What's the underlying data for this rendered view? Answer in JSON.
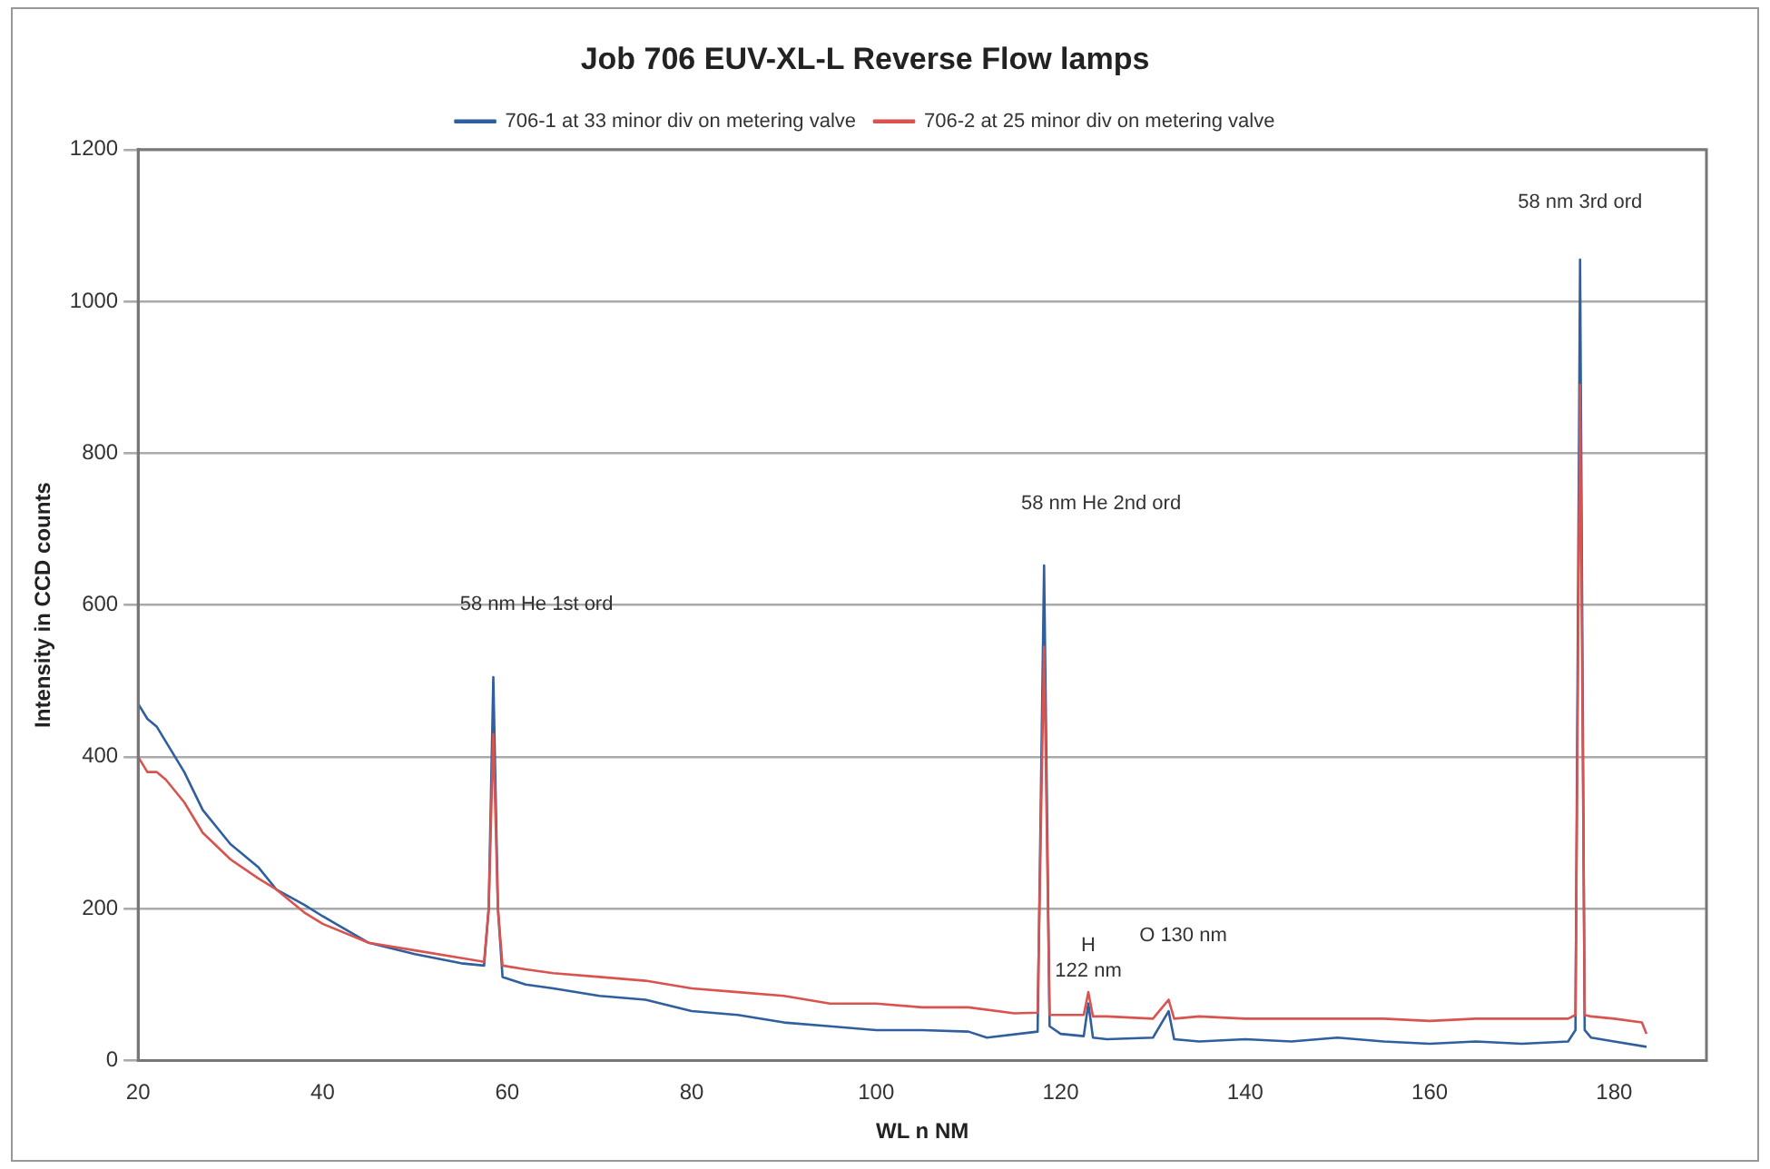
{
  "chart_data": {
    "type": "line",
    "title": "Job 706 EUV-XL-L Reverse Flow lamps",
    "xlabel": "WL n NM",
    "ylabel": "Intensity in CCD counts",
    "xlim": [
      20,
      190
    ],
    "xticks": [
      20,
      40,
      60,
      80,
      100,
      120,
      140,
      160,
      180
    ],
    "ylim": [
      0,
      1200
    ],
    "yticks": [
      0,
      200,
      400,
      600,
      800,
      1000,
      1200
    ],
    "grid": "y",
    "legend": "top",
    "marker": "none",
    "series": [
      {
        "name": "706-1 at 33 minor div on metering valve",
        "color": "#2f5f9e",
        "x": [
          20,
          21,
          22,
          24,
          25,
          27,
          30,
          33,
          35,
          38,
          40,
          45,
          50,
          55,
          57.5,
          58,
          58.5,
          59,
          59.5,
          62,
          65,
          70,
          75,
          80,
          85,
          90,
          95,
          100,
          105,
          110,
          112,
          117.5,
          118.2,
          118.8,
          120,
          122.5,
          123,
          123.5,
          125,
          130,
          131.7,
          132.3,
          135,
          140,
          145,
          150,
          155,
          160,
          165,
          170,
          175,
          175.8,
          176.3,
          176.8,
          177.5,
          180,
          183.5
        ],
        "values": [
          470,
          450,
          440,
          400,
          380,
          330,
          285,
          255,
          225,
          205,
          190,
          155,
          140,
          128,
          125,
          200,
          505,
          200,
          110,
          100,
          95,
          85,
          80,
          65,
          60,
          50,
          45,
          40,
          40,
          38,
          30,
          38,
          652,
          45,
          35,
          32,
          75,
          30,
          28,
          30,
          65,
          28,
          25,
          28,
          25,
          30,
          25,
          22,
          25,
          22,
          25,
          40,
          1055,
          40,
          30,
          25,
          18
        ]
      },
      {
        "name": "706-2 at 25 minor div on metering valve",
        "color": "#d9534f",
        "x": [
          20,
          21,
          22,
          23,
          25,
          27,
          30,
          33,
          35,
          38,
          40,
          45,
          50,
          55,
          57.5,
          58,
          58.5,
          59,
          59.5,
          62,
          65,
          70,
          75,
          80,
          85,
          90,
          95,
          100,
          105,
          110,
          115,
          117.5,
          118.2,
          118.8,
          120,
          122.5,
          123,
          123.5,
          125,
          130,
          131.7,
          132.3,
          135,
          140,
          145,
          150,
          155,
          160,
          165,
          170,
          175,
          175.8,
          176.3,
          176.8,
          177.5,
          180,
          183,
          183.5
        ],
        "values": [
          400,
          380,
          380,
          370,
          340,
          300,
          265,
          240,
          225,
          195,
          180,
          155,
          145,
          135,
          130,
          200,
          430,
          200,
          125,
          120,
          115,
          110,
          105,
          95,
          90,
          85,
          75,
          75,
          70,
          70,
          62,
          63,
          545,
          60,
          60,
          60,
          90,
          58,
          58,
          55,
          80,
          55,
          58,
          55,
          55,
          55,
          55,
          52,
          55,
          55,
          55,
          60,
          890,
          60,
          58,
          55,
          50,
          35
        ]
      }
    ],
    "annotations": [
      "58 nm He 1st ord",
      "58 nm He 2nd ord",
      {
        "text": "H\n122 nm",
        "x": 123,
        "y": 90
      },
      {
        "text": "O 130 nm",
        "x": 131.7,
        "y": 80
      },
      {
        "text": "58 nm 3rd ord",
        "x": 176.3,
        "y": 1055
      }
    ]
  }
}
